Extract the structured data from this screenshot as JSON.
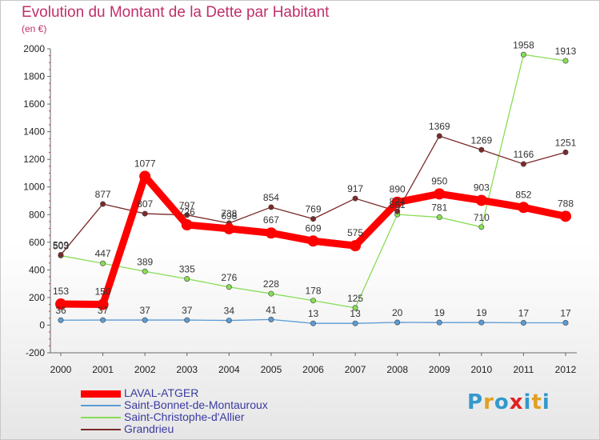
{
  "header": {
    "title": "Evolution du Montant de la Dette par Habitant",
    "unit": "(en €)"
  },
  "logo": {
    "text": "Proxiti",
    "letter_colors": [
      "#3399cc",
      "#e0a020",
      "#3399cc",
      "#e02020",
      "#3399cc",
      "#e0a020",
      "#3399cc"
    ]
  },
  "chart_data": {
    "type": "line",
    "title": "Evolution du Montant de la Dette par Habitant",
    "subtitle": "(en €)",
    "x": [
      "2000",
      "2001",
      "2002",
      "2003",
      "2004",
      "2005",
      "2006",
      "2007",
      "2008",
      "2009",
      "2010",
      "2011",
      "2012"
    ],
    "ylim": [
      -200,
      2000
    ],
    "yticks": [
      -200,
      0,
      200,
      400,
      600,
      800,
      1000,
      1200,
      1400,
      1600,
      1800,
      2000
    ],
    "grid": false,
    "legend_position": "bottom-left",
    "series": [
      {
        "name": "LAVAL-ATGER",
        "color": "#ff0000",
        "emphasis": true,
        "values": [
          153,
          150,
          1077,
          726,
          698,
          667,
          609,
          575,
          890,
          950,
          903,
          852,
          788
        ]
      },
      {
        "name": "Saint-Bonnet-de-Montauroux",
        "color": "#5b9bd5",
        "values": [
          36,
          37,
          37,
          37,
          34,
          41,
          13,
          13,
          20,
          19,
          19,
          17,
          17
        ]
      },
      {
        "name": "Saint-Christophe-d'Allier",
        "color": "#88dd55",
        "values": [
          503,
          447,
          389,
          335,
          276,
          228,
          178,
          125,
          801,
          781,
          710,
          1958,
          1913
        ]
      },
      {
        "name": "Grandrieu",
        "color": "#7a2a2a",
        "values": [
          509,
          877,
          807,
          797,
          738,
          854,
          769,
          917,
          824,
          1369,
          1269,
          1166,
          1251
        ]
      }
    ]
  }
}
